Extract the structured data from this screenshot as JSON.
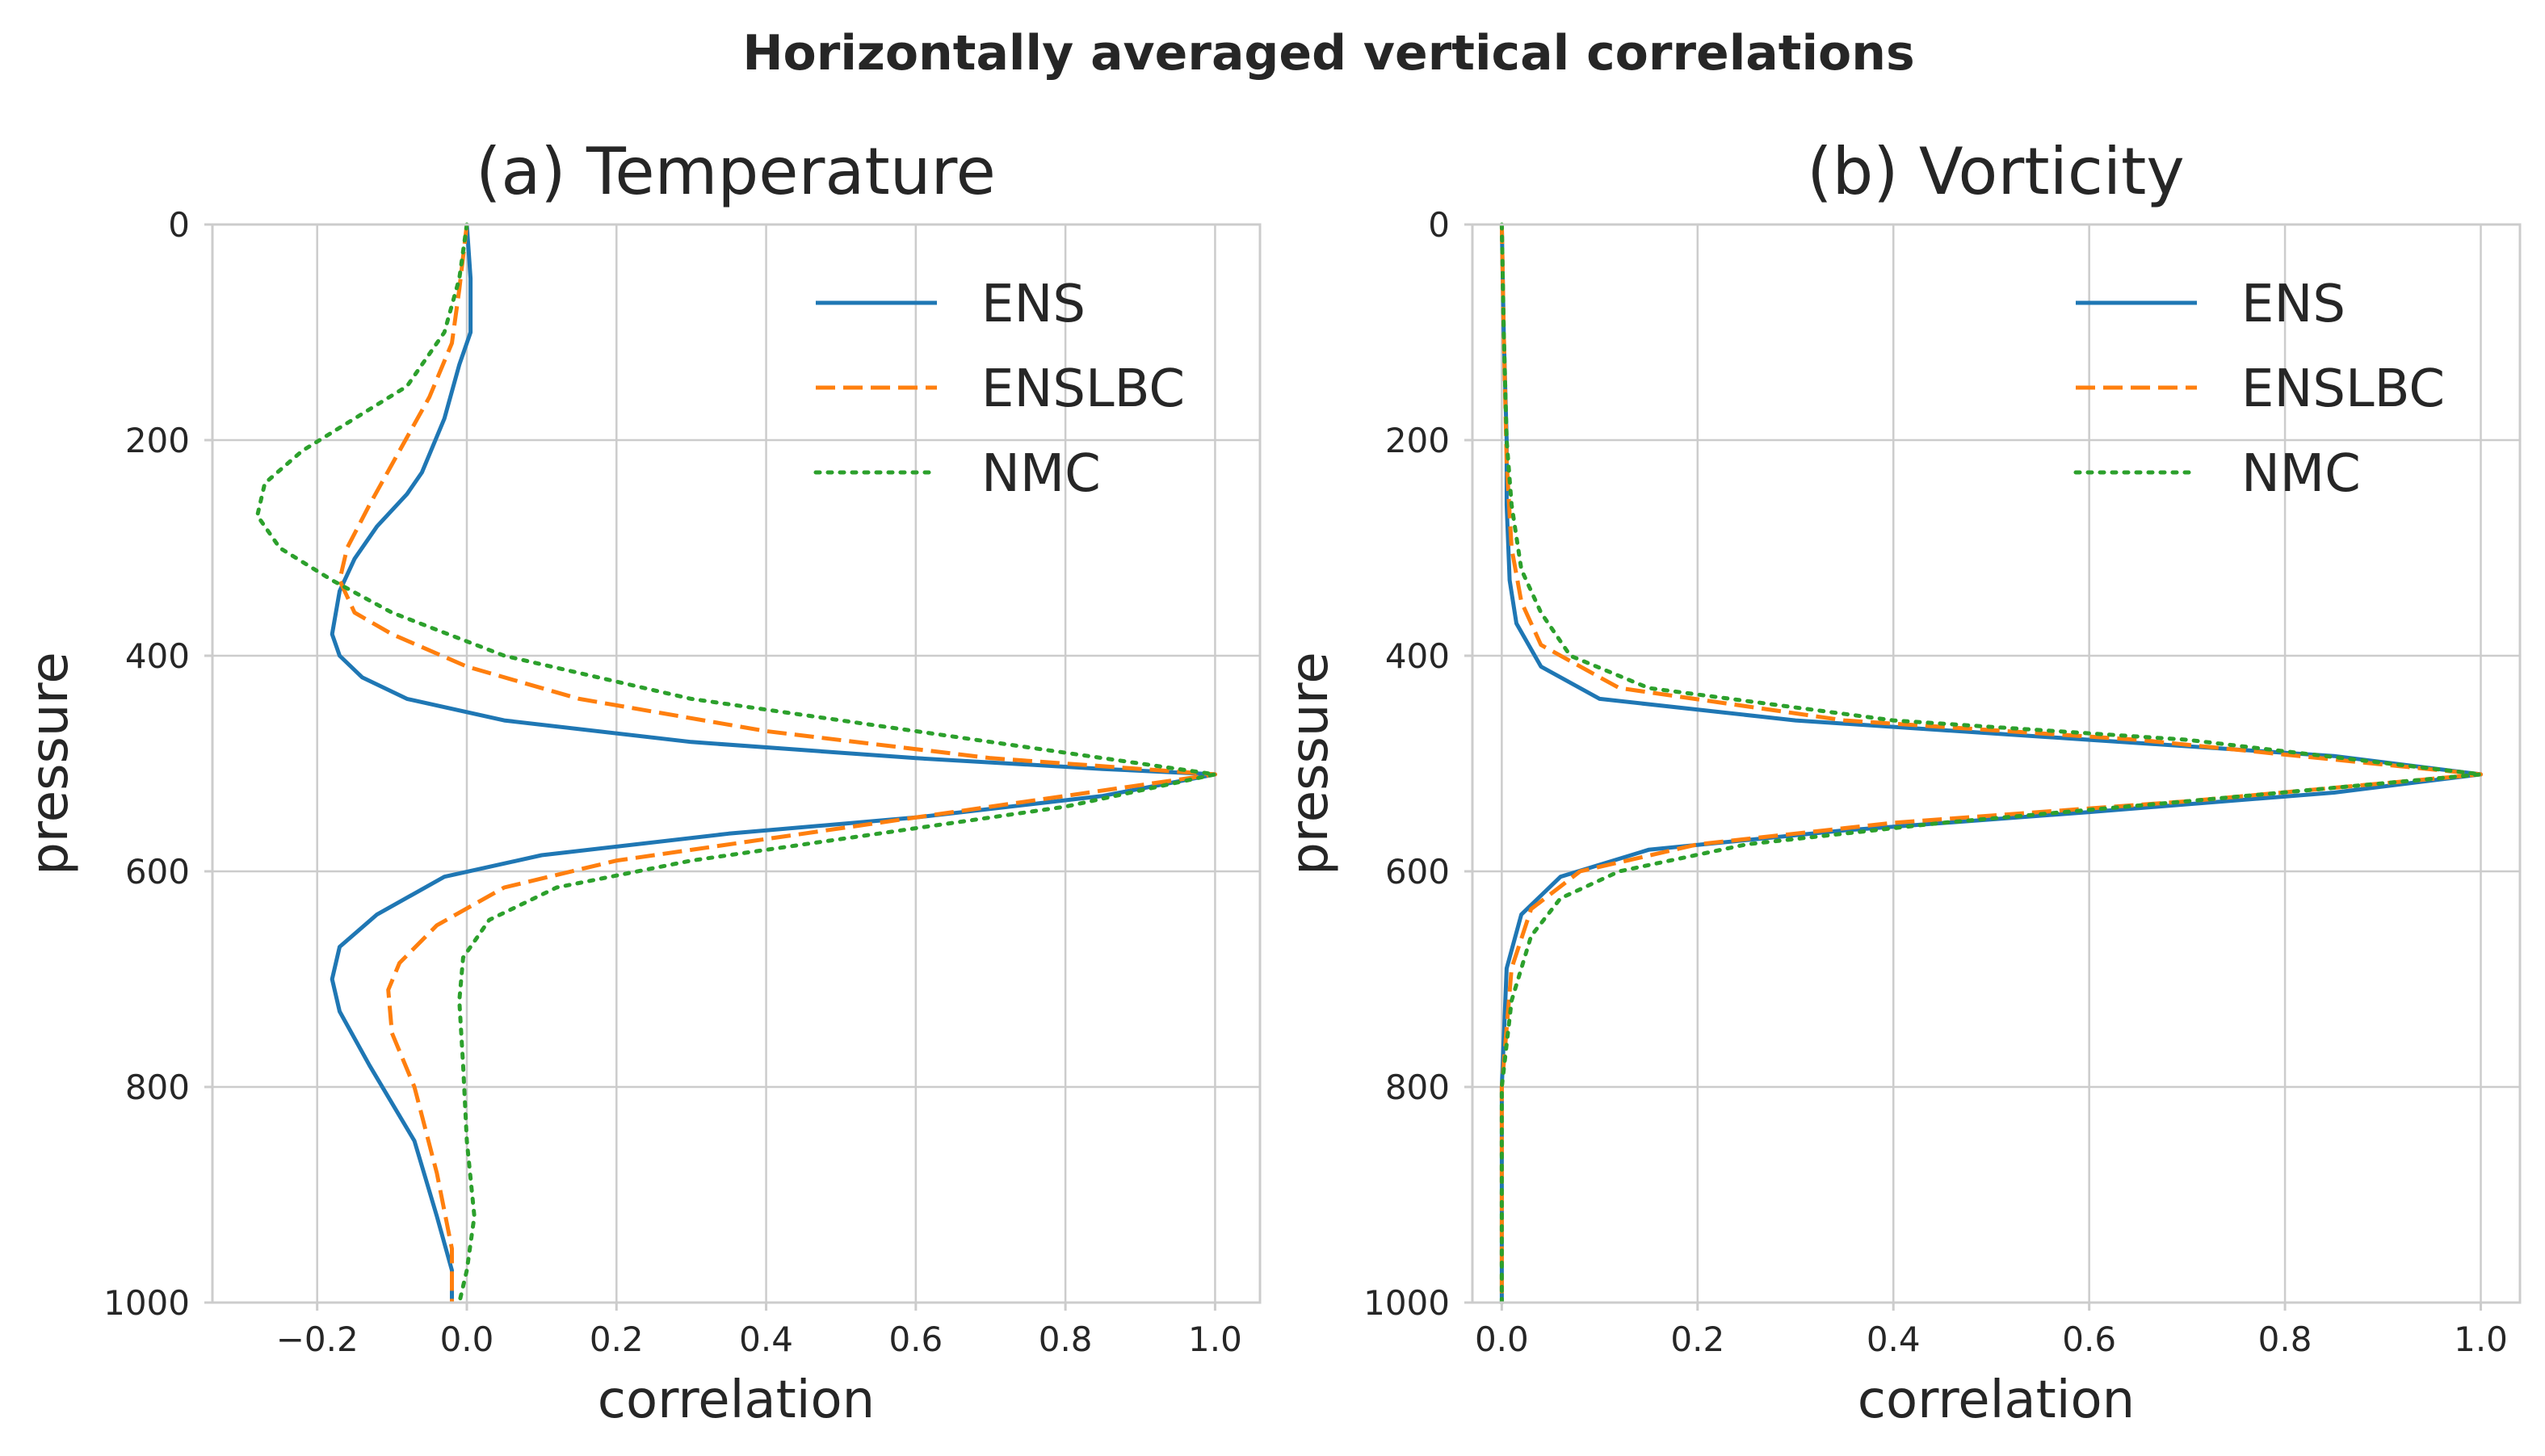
{
  "chart_data": [
    {
      "type": "line",
      "title": "(a)   Temperature",
      "xlabel": "correlation",
      "ylabel": "pressure",
      "xlim": [
        -0.34,
        1.06
      ],
      "ylim": [
        1000,
        0
      ],
      "x_ticks": [
        -0.2,
        0.0,
        0.2,
        0.4,
        0.6,
        0.8,
        1.0
      ],
      "x_tick_labels": [
        "−0.2",
        "0.0",
        "0.2",
        "0.4",
        "0.6",
        "0.8",
        "1.0"
      ],
      "y_ticks": [
        0,
        200,
        400,
        600,
        800,
        1000
      ],
      "y_tick_labels": [
        "0",
        "200",
        "400",
        "600",
        "800",
        "1000"
      ],
      "grid": true,
      "legend_position": "top-right",
      "series": [
        {
          "name": "ENS",
          "color": "#1f77b4",
          "style": "solid",
          "x": [
            0.0,
            0.005,
            0.005,
            -0.01,
            -0.03,
            -0.06,
            -0.08,
            -0.12,
            -0.15,
            -0.17,
            -0.18,
            -0.17,
            -0.14,
            -0.08,
            0.05,
            0.3,
            0.6,
            0.85,
            1.0,
            0.85,
            0.6,
            0.35,
            0.1,
            -0.03,
            -0.12,
            -0.17,
            -0.18,
            -0.17,
            -0.13,
            -0.07,
            -0.04,
            -0.02,
            -0.02
          ],
          "y": [
            0,
            50,
            100,
            130,
            180,
            230,
            250,
            280,
            310,
            340,
            380,
            400,
            420,
            440,
            460,
            480,
            495,
            505,
            510,
            530,
            550,
            565,
            585,
            605,
            640,
            670,
            700,
            730,
            780,
            850,
            920,
            970,
            1000
          ]
        },
        {
          "name": "ENSLBC",
          "color": "#ff7f0e",
          "style": "dashed",
          "x": [
            0.0,
            -0.01,
            -0.02,
            -0.05,
            -0.09,
            -0.13,
            -0.16,
            -0.17,
            -0.15,
            -0.1,
            0.0,
            0.15,
            0.4,
            0.7,
            1.0,
            0.7,
            0.45,
            0.2,
            0.05,
            -0.04,
            -0.09,
            -0.105,
            -0.1,
            -0.07,
            -0.04,
            -0.02,
            -0.02
          ],
          "y": [
            0,
            60,
            110,
            160,
            210,
            260,
            300,
            330,
            360,
            380,
            410,
            440,
            470,
            495,
            510,
            540,
            565,
            590,
            615,
            650,
            685,
            710,
            750,
            800,
            880,
            950,
            1000
          ]
        },
        {
          "name": "NMC",
          "color": "#2ca02c",
          "style": "dotted",
          "x": [
            0.0,
            -0.01,
            -0.03,
            -0.08,
            -0.15,
            -0.22,
            -0.27,
            -0.28,
            -0.25,
            -0.18,
            -0.1,
            0.05,
            0.3,
            0.6,
            0.85,
            1.0,
            0.8,
            0.55,
            0.3,
            0.12,
            0.03,
            -0.005,
            -0.01,
            -0.005,
            0.0,
            0.01,
            0.0,
            -0.01
          ],
          "y": [
            0,
            50,
            100,
            150,
            180,
            210,
            240,
            270,
            300,
            330,
            360,
            400,
            440,
            470,
            495,
            510,
            540,
            565,
            590,
            615,
            645,
            680,
            720,
            780,
            850,
            920,
            970,
            1000
          ]
        }
      ]
    },
    {
      "type": "line",
      "title": "(b)   Vorticity",
      "xlabel": "correlation",
      "ylabel": "pressure",
      "xlim": [
        -0.03,
        1.04
      ],
      "ylim": [
        1000,
        0
      ],
      "x_ticks": [
        0.0,
        0.2,
        0.4,
        0.6,
        0.8,
        1.0
      ],
      "x_tick_labels": [
        "0.0",
        "0.2",
        "0.4",
        "0.6",
        "0.8",
        "1.0"
      ],
      "y_ticks": [
        0,
        200,
        400,
        600,
        800,
        1000
      ],
      "y_tick_labels": [
        "0",
        "200",
        "400",
        "600",
        "800",
        "1000"
      ],
      "grid": true,
      "legend_position": "top-right",
      "series": [
        {
          "name": "ENS",
          "color": "#1f77b4",
          "style": "solid",
          "x": [
            0.0,
            0.002,
            0.005,
            0.005,
            0.008,
            0.015,
            0.04,
            0.1,
            0.3,
            0.6,
            0.85,
            1.0,
            0.85,
            0.6,
            0.35,
            0.15,
            0.06,
            0.02,
            0.005,
            0.0,
            0.0
          ],
          "y": [
            0,
            100,
            200,
            260,
            330,
            370,
            410,
            440,
            460,
            478,
            493,
            510,
            527,
            545,
            562,
            580,
            605,
            640,
            690,
            800,
            1000
          ]
        },
        {
          "name": "ENSLBC",
          "color": "#ff7f0e",
          "style": "dashed",
          "x": [
            0.0,
            0.002,
            0.005,
            0.01,
            0.02,
            0.04,
            0.12,
            0.35,
            0.65,
            1.0,
            0.7,
            0.4,
            0.2,
            0.08,
            0.03,
            0.01,
            0.0,
            0.0
          ],
          "y": [
            0,
            100,
            220,
            300,
            350,
            390,
            430,
            460,
            478,
            510,
            535,
            555,
            575,
            600,
            635,
            690,
            800,
            1000
          ]
        },
        {
          "name": "NMC",
          "color": "#2ca02c",
          "style": "dotted",
          "x": [
            0.0,
            0.002,
            0.005,
            0.01,
            0.02,
            0.04,
            0.07,
            0.15,
            0.4,
            0.7,
            1.0,
            0.7,
            0.45,
            0.25,
            0.12,
            0.06,
            0.03,
            0.01,
            0.0,
            0.0
          ],
          "y": [
            0,
            100,
            200,
            260,
            320,
            360,
            400,
            430,
            460,
            478,
            510,
            535,
            555,
            575,
            600,
            625,
            660,
            720,
            800,
            1000
          ]
        }
      ]
    }
  ],
  "figure": {
    "suptitle": "Horizontally averaged vertical correlations"
  }
}
